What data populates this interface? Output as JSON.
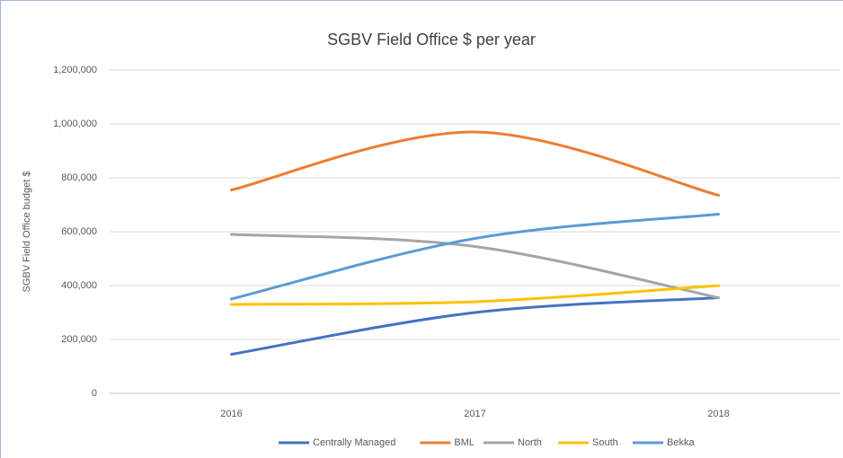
{
  "chart_data": {
    "type": "line",
    "title": "SGBV Field Office $ per year",
    "y_label": "SGBV Field Office budget $",
    "categories": [
      "2016",
      "2017",
      "2018"
    ],
    "series": [
      {
        "name": "Centrally Managed",
        "color": "#4472c4",
        "values": [
          145000,
          300000,
          355000
        ]
      },
      {
        "name": "BML",
        "color": "#ed7d31",
        "values": [
          755000,
          970000,
          735000
        ]
      },
      {
        "name": "North",
        "color": "#a5a5a5",
        "values": [
          590000,
          545000,
          355000
        ]
      },
      {
        "name": "South",
        "color": "#ffc000",
        "values": [
          330000,
          340000,
          400000
        ]
      },
      {
        "name": "Bekka",
        "color": "#5b9bd5",
        "values": [
          350000,
          575000,
          665000
        ]
      }
    ],
    "ylim": [
      0,
      1200000
    ],
    "yticks": [
      0,
      {
        "value": 200000,
        "label": "200,000"
      },
      {
        "value": 400000,
        "label": "400,000"
      },
      {
        "value": 600000,
        "label": "600,000"
      },
      {
        "value": 800000,
        "label": "800,000"
      },
      {
        "value": 1000000,
        "label": "1,000,000"
      },
      {
        "value": 1200000,
        "label": "1,200,000"
      }
    ],
    "grid": true,
    "smooth": true,
    "legend": "bottom"
  }
}
